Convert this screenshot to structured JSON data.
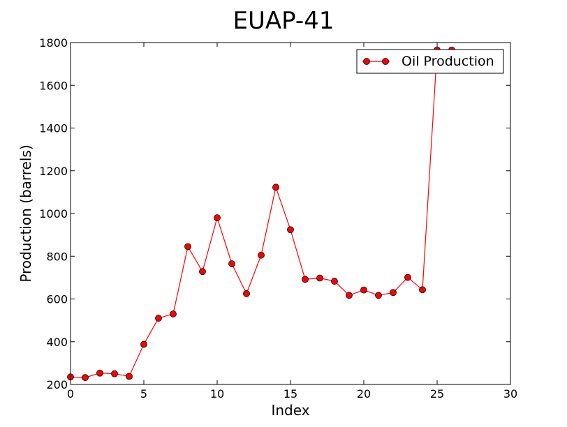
{
  "chart_data": {
    "type": "line",
    "title": "EUAP-41",
    "xlabel": "Index",
    "ylabel": "Production (barrels)",
    "xlim": [
      0,
      30
    ],
    "ylim": [
      200,
      1800
    ],
    "xticks": [
      "0",
      "5",
      "10",
      "15",
      "20",
      "25",
      "30"
    ],
    "yticks": [
      "200",
      "400",
      "600",
      "800",
      "1000",
      "1200",
      "1400",
      "1600",
      "1800"
    ],
    "grid": false,
    "legend_position": "top-right",
    "series": [
      {
        "name": "Oil Production",
        "color": "#ff0000",
        "marker": "circle",
        "x": [
          0,
          1,
          2,
          3,
          4,
          5,
          6,
          7,
          8,
          9,
          10,
          11,
          12,
          13,
          14,
          15,
          16,
          17,
          18,
          19,
          20,
          21,
          22,
          23,
          24,
          25,
          26
        ],
        "values": [
          235,
          232,
          253,
          250,
          238,
          388,
          510,
          530,
          845,
          728,
          980,
          765,
          625,
          805,
          1123,
          924,
          692,
          698,
          683,
          617,
          642,
          617,
          630,
          701,
          643,
          1765,
          1765
        ]
      }
    ]
  }
}
